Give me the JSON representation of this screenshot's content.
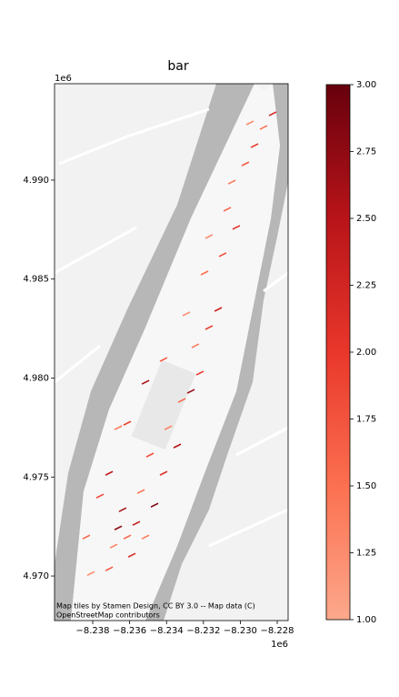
{
  "chart_data": {
    "type": "map",
    "title": "bar",
    "x_offset_label": "1e6",
    "y_offset_label": "1e6",
    "attribution": [
      "Map tiles by Stamen Design, CC BY 3.0 -- Map data (C)",
      "OpenStreetMap contributors"
    ],
    "xlim": [
      -8.24007,
      -8.22741
    ],
    "ylim": [
      4.96775,
      4.99487
    ],
    "xticks": [
      {
        "value": -8.238,
        "label": "−8.238"
      },
      {
        "value": -8.236,
        "label": "−8.236"
      },
      {
        "value": -8.234,
        "label": "−8.234"
      },
      {
        "value": -8.232,
        "label": "−8.232"
      },
      {
        "value": -8.23,
        "label": "−8.230"
      },
      {
        "value": -8.228,
        "label": "−8.228"
      }
    ],
    "yticks": [
      {
        "value": 4.97,
        "label": "4.970"
      },
      4.975,
      {
        "value": 4.98,
        "label": "4.980"
      },
      4.985,
      {
        "value": 4.99,
        "label": "4.990"
      }
    ],
    "colorbar": {
      "lim": [
        1,
        3
      ],
      "ticks": [
        {
          "value": 1,
          "label": "1.00"
        },
        1.25,
        {
          "value": 1.5,
          "label": "1.50"
        },
        1.75,
        {
          "value": 2,
          "label": "2.00"
        },
        2.25,
        {
          "value": 2.5,
          "label": "2.50"
        },
        2.75,
        {
          "value": 3,
          "label": "3.00"
        }
      ],
      "colors": [
        "#fca88c",
        "#fb7050",
        "#e9372b",
        "#b81419",
        "#67000d"
      ]
    },
    "x": [
      -8.23662,
      -8.23613,
      -8.23564,
      -8.23687,
      -8.23761,
      -8.23638,
      -8.23514,
      -8.23588,
      -8.23711,
      -8.2381,
      -8.23465,
      -8.23539,
      -8.23416,
      -8.2349,
      -8.23342,
      -8.23391,
      -8.23268,
      -8.23317,
      -8.23219,
      -8.23244,
      -8.2317,
      -8.23293,
      -8.2312,
      -8.23194,
      -8.23096,
      -8.2317,
      -8.23022,
      -8.23071,
      -8.23046,
      -8.22973,
      -8.22923,
      -8.22874,
      -8.22825,
      -8.22948,
      -8.23835,
      -8.23711,
      -8.23613,
      -8.23514,
      -8.23662,
      -8.23416
    ],
    "y": [
      4.97243,
      4.97197,
      4.97266,
      4.97151,
      4.97404,
      4.97335,
      4.97197,
      4.97105,
      4.97036,
      4.97013,
      4.97358,
      4.97427,
      4.97519,
      4.97611,
      4.97657,
      4.97749,
      4.97933,
      4.97887,
      4.98025,
      4.98163,
      4.98255,
      4.98324,
      4.98347,
      4.98531,
      4.98623,
      4.98715,
      4.98761,
      4.98853,
      4.9899,
      4.99082,
      4.99174,
      4.99266,
      4.99335,
      4.99289,
      4.97197,
      4.97519,
      4.97772,
      4.97979,
      4.97749,
      4.98094
    ],
    "values": [
      2.8,
      1.6,
      2.4,
      1.3,
      1.9,
      2.6,
      1.4,
      2.2,
      1.7,
      1.2,
      2.9,
      1.5,
      2.1,
      1.8,
      2.5,
      1.3,
      2.7,
      1.6,
      2.0,
      1.4,
      1.9,
      1.2,
      2.3,
      1.5,
      1.8,
      1.3,
      2.1,
      1.6,
      1.4,
      1.7,
      2.0,
      1.5,
      2.2,
      1.3,
      1.6,
      2.4,
      1.9,
      2.6,
      1.4,
      1.7
    ]
  }
}
